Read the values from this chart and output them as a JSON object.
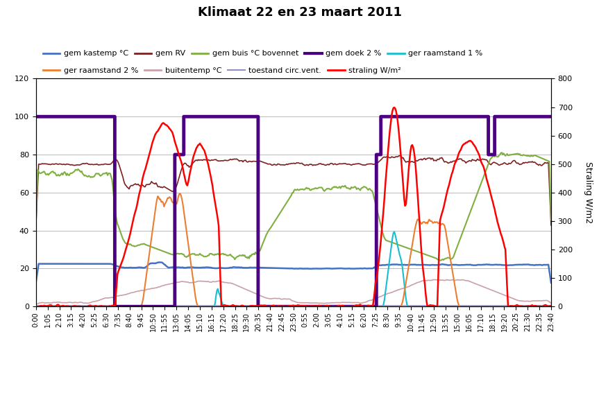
{
  "title": "Klimaat 22 en 23 maart 2011",
  "ylabel_right": "Straling W/m2",
  "ylim_left": [
    0,
    120
  ],
  "ylim_right": [
    0,
    800
  ],
  "yticks_left": [
    0,
    20,
    40,
    60,
    80,
    100,
    120
  ],
  "yticks_right": [
    0,
    100,
    200,
    300,
    400,
    500,
    600,
    700,
    800
  ],
  "background_color": "#ffffff",
  "grid_color": "#b0b0b0",
  "series": {
    "gem_kastemp": {
      "label": "gem kastemp °C",
      "color": "#4472c4",
      "lw": 1.8,
      "zorder": 4
    },
    "gem_rv": {
      "label": "gem RV",
      "color": "#7f2020",
      "lw": 1.2,
      "zorder": 4
    },
    "gem_buis": {
      "label": "gem buis °C bovennet",
      "color": "#7faf3f",
      "lw": 1.5,
      "zorder": 4
    },
    "gem_doek": {
      "label": "gem doek 2 %",
      "color": "#4b0082",
      "lw": 3.5,
      "zorder": 5
    },
    "ger_raam1": {
      "label": "ger raamstand 1 %",
      "color": "#17becf",
      "lw": 1.5,
      "zorder": 4
    },
    "ger_raam2": {
      "label": "ger raamstand 2 %",
      "color": "#ed7d31",
      "lw": 1.5,
      "zorder": 4
    },
    "buitentemp": {
      "label": "buitentemp °C",
      "color": "#c9a0a8",
      "lw": 1.2,
      "zorder": 3
    },
    "toestand": {
      "label": "toestand circ.vent.",
      "color": "#9090c0",
      "lw": 1.0,
      "zorder": 3
    },
    "straling": {
      "label": "straling W/m²",
      "color": "#ff0000",
      "lw": 1.8,
      "zorder": 6
    }
  },
  "n_points": 576,
  "xticklabels": [
    "0:00",
    "1:05",
    "2:10",
    "3:15",
    "4:20",
    "5:25",
    "6:30",
    "7:35",
    "8:40",
    "9:45",
    "10:50",
    "11:55",
    "13:05",
    "14:05",
    "15:10",
    "16:15",
    "17:20",
    "18:25",
    "19:30",
    "20:35",
    "21:40",
    "22:45",
    "23:50",
    "0:55",
    "2:00",
    "3:05",
    "4:10",
    "5:15",
    "6:20",
    "7:25",
    "8:30",
    "9:35",
    "10:40",
    "11:45",
    "12:50",
    "13:55",
    "15:00",
    "16:05",
    "17:10",
    "18:15",
    "19:20",
    "20:25",
    "21:30",
    "22:35",
    "23:40"
  ]
}
